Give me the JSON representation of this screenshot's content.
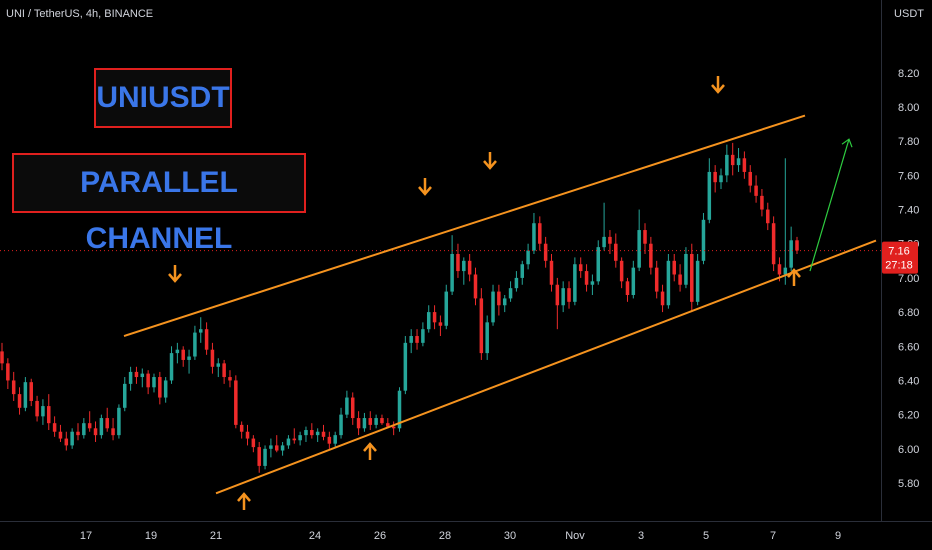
{
  "header": {
    "symbol_line": "UNI / TetherUS, 4h, BINANCE",
    "unit": "USDT"
  },
  "annotations": {
    "banner_ticker": "UNIUSDT",
    "banner_pattern": "PARALLEL CHANNEL"
  },
  "current_price": {
    "price_label": "7.16",
    "countdown_label": "27:18"
  },
  "colors": {
    "up": "#26a69a",
    "down": "#ef2b2b",
    "channel": "#f5931f",
    "arrow_projection": "#2ecc40",
    "banner_border": "#e0201e",
    "banner_text": "#3a76e8",
    "price_tag": "#e0201e"
  },
  "chart_data": {
    "type": "candlestick",
    "title": "UNI / TetherUS, 4h, BINANCE",
    "ylabel": "USDT",
    "ylim": [
      5.7,
      8.25
    ],
    "y_ticks": [
      "5.80",
      "6.00",
      "6.20",
      "6.40",
      "6.60",
      "6.80",
      "7.00",
      "7.20",
      "7.40",
      "7.60",
      "7.80",
      "8.00",
      "8.20"
    ],
    "x_ticks": [
      "17",
      "19",
      "21",
      "24",
      "26",
      "28",
      "30",
      "Nov",
      "3",
      "5",
      "7",
      "9"
    ],
    "x_ticks_dates": [
      "Oct 17",
      "Oct 19",
      "Oct 21",
      "Oct 24",
      "Oct 26",
      "Oct 28",
      "Oct 30",
      "Nov 1",
      "Nov 3",
      "Nov 5",
      "Nov 7",
      "Nov 9"
    ],
    "grid": false,
    "last_price": 7.16,
    "channel": {
      "upper": {
        "from": {
          "date": "Oct 17",
          "price": 6.66
        },
        "to": {
          "date": "Nov 8",
          "price": 7.95
        }
      },
      "lower": {
        "from": {
          "date": "Oct 21",
          "price": 5.74
        },
        "to": {
          "date": "Nov 8",
          "price": 7.16
        }
      }
    },
    "touch_points": {
      "upper_touches": [
        {
          "date": "Oct 19",
          "price": 6.78
        },
        {
          "date": "Oct 27",
          "price": 7.25
        },
        {
          "date": "Oct 29",
          "price": 7.38
        },
        {
          "date": "Nov 5",
          "price": 7.79
        }
      ],
      "lower_touches": [
        {
          "date": "Oct 21",
          "price": 5.85
        },
        {
          "date": "Oct 25",
          "price": 6.09
        },
        {
          "date": "Nov 7",
          "price": 6.96
        }
      ]
    },
    "projection_arrow": {
      "from": {
        "date": "Nov 7",
        "price": 7.04
      },
      "to": {
        "date": "Nov 8",
        "price": 7.8
      }
    },
    "candles": [
      {
        "o": 6.57,
        "h": 6.62,
        "l": 6.46,
        "c": 6.5
      },
      {
        "o": 6.5,
        "h": 6.53,
        "l": 6.35,
        "c": 6.4
      },
      {
        "o": 6.4,
        "h": 6.45,
        "l": 6.28,
        "c": 6.32
      },
      {
        "o": 6.32,
        "h": 6.36,
        "l": 6.2,
        "c": 6.24
      },
      {
        "o": 6.24,
        "h": 6.42,
        "l": 6.22,
        "c": 6.39
      },
      {
        "o": 6.39,
        "h": 6.41,
        "l": 6.25,
        "c": 6.28
      },
      {
        "o": 6.28,
        "h": 6.31,
        "l": 6.16,
        "c": 6.19
      },
      {
        "o": 6.19,
        "h": 6.29,
        "l": 6.14,
        "c": 6.25
      },
      {
        "o": 6.25,
        "h": 6.32,
        "l": 6.11,
        "c": 6.15
      },
      {
        "o": 6.15,
        "h": 6.19,
        "l": 6.07,
        "c": 6.1
      },
      {
        "o": 6.1,
        "h": 6.14,
        "l": 6.04,
        "c": 6.06
      },
      {
        "o": 6.06,
        "h": 6.1,
        "l": 5.99,
        "c": 6.02
      },
      {
        "o": 6.02,
        "h": 6.12,
        "l": 6.0,
        "c": 6.1
      },
      {
        "o": 6.1,
        "h": 6.15,
        "l": 6.05,
        "c": 6.08
      },
      {
        "o": 6.08,
        "h": 6.18,
        "l": 6.06,
        "c": 6.15
      },
      {
        "o": 6.15,
        "h": 6.22,
        "l": 6.1,
        "c": 6.12
      },
      {
        "o": 6.12,
        "h": 6.16,
        "l": 6.04,
        "c": 6.08
      },
      {
        "o": 6.08,
        "h": 6.2,
        "l": 6.06,
        "c": 6.18
      },
      {
        "o": 6.18,
        "h": 6.24,
        "l": 6.1,
        "c": 6.12
      },
      {
        "o": 6.12,
        "h": 6.18,
        "l": 6.05,
        "c": 6.08
      },
      {
        "o": 6.08,
        "h": 6.26,
        "l": 6.06,
        "c": 6.24
      },
      {
        "o": 6.24,
        "h": 6.42,
        "l": 6.22,
        "c": 6.38
      },
      {
        "o": 6.38,
        "h": 6.48,
        "l": 6.34,
        "c": 6.45
      },
      {
        "o": 6.45,
        "h": 6.48,
        "l": 6.38,
        "c": 6.42
      },
      {
        "o": 6.42,
        "h": 6.47,
        "l": 6.36,
        "c": 6.44
      },
      {
        "o": 6.44,
        "h": 6.46,
        "l": 6.32,
        "c": 6.36
      },
      {
        "o": 6.36,
        "h": 6.44,
        "l": 6.33,
        "c": 6.42
      },
      {
        "o": 6.42,
        "h": 6.45,
        "l": 6.26,
        "c": 6.3
      },
      {
        "o": 6.3,
        "h": 6.42,
        "l": 6.27,
        "c": 6.4
      },
      {
        "o": 6.4,
        "h": 6.6,
        "l": 6.38,
        "c": 6.56
      },
      {
        "o": 6.56,
        "h": 6.62,
        "l": 6.5,
        "c": 6.58
      },
      {
        "o": 6.58,
        "h": 6.6,
        "l": 6.48,
        "c": 6.52
      },
      {
        "o": 6.52,
        "h": 6.58,
        "l": 6.44,
        "c": 6.54
      },
      {
        "o": 6.54,
        "h": 6.72,
        "l": 6.52,
        "c": 6.68
      },
      {
        "o": 6.68,
        "h": 6.77,
        "l": 6.62,
        "c": 6.7
      },
      {
        "o": 6.7,
        "h": 6.74,
        "l": 6.55,
        "c": 6.58
      },
      {
        "o": 6.58,
        "h": 6.62,
        "l": 6.44,
        "c": 6.48
      },
      {
        "o": 6.48,
        "h": 6.53,
        "l": 6.42,
        "c": 6.5
      },
      {
        "o": 6.5,
        "h": 6.52,
        "l": 6.38,
        "c": 6.42
      },
      {
        "o": 6.42,
        "h": 6.46,
        "l": 6.36,
        "c": 6.4
      },
      {
        "o": 6.4,
        "h": 6.43,
        "l": 6.12,
        "c": 6.14
      },
      {
        "o": 6.14,
        "h": 6.16,
        "l": 6.06,
        "c": 6.1
      },
      {
        "o": 6.1,
        "h": 6.14,
        "l": 6.02,
        "c": 6.06
      },
      {
        "o": 6.06,
        "h": 6.08,
        "l": 5.98,
        "c": 6.01
      },
      {
        "o": 6.01,
        "h": 6.04,
        "l": 5.86,
        "c": 5.9
      },
      {
        "o": 5.9,
        "h": 6.02,
        "l": 5.88,
        "c": 6.0
      },
      {
        "o": 6.0,
        "h": 6.06,
        "l": 5.95,
        "c": 6.02
      },
      {
        "o": 6.02,
        "h": 6.08,
        "l": 5.98,
        "c": 5.99
      },
      {
        "o": 5.99,
        "h": 6.04,
        "l": 5.96,
        "c": 6.02
      },
      {
        "o": 6.02,
        "h": 6.08,
        "l": 6.0,
        "c": 6.06
      },
      {
        "o": 6.06,
        "h": 6.12,
        "l": 6.03,
        "c": 6.05
      },
      {
        "o": 6.05,
        "h": 6.1,
        "l": 6.02,
        "c": 6.08
      },
      {
        "o": 6.08,
        "h": 6.13,
        "l": 6.04,
        "c": 6.11
      },
      {
        "o": 6.11,
        "h": 6.15,
        "l": 6.06,
        "c": 6.08
      },
      {
        "o": 6.08,
        "h": 6.12,
        "l": 6.04,
        "c": 6.1
      },
      {
        "o": 6.1,
        "h": 6.14,
        "l": 6.05,
        "c": 6.07
      },
      {
        "o": 6.07,
        "h": 6.1,
        "l": 6.0,
        "c": 6.03
      },
      {
        "o": 6.03,
        "h": 6.1,
        "l": 6.01,
        "c": 6.08
      },
      {
        "o": 6.08,
        "h": 6.24,
        "l": 6.06,
        "c": 6.2
      },
      {
        "o": 6.2,
        "h": 6.34,
        "l": 6.18,
        "c": 6.3
      },
      {
        "o": 6.3,
        "h": 6.33,
        "l": 6.14,
        "c": 6.18
      },
      {
        "o": 6.18,
        "h": 6.22,
        "l": 6.08,
        "c": 6.12
      },
      {
        "o": 6.12,
        "h": 6.21,
        "l": 6.1,
        "c": 6.18
      },
      {
        "o": 6.18,
        "h": 6.22,
        "l": 6.11,
        "c": 6.14
      },
      {
        "o": 6.14,
        "h": 6.2,
        "l": 6.12,
        "c": 6.18
      },
      {
        "o": 6.18,
        "h": 6.2,
        "l": 6.14,
        "c": 6.15
      },
      {
        "o": 6.15,
        "h": 6.18,
        "l": 6.12,
        "c": 6.13
      },
      {
        "o": 6.13,
        "h": 6.16,
        "l": 6.08,
        "c": 6.12
      },
      {
        "o": 6.12,
        "h": 6.36,
        "l": 6.1,
        "c": 6.34
      },
      {
        "o": 6.34,
        "h": 6.66,
        "l": 6.32,
        "c": 6.62
      },
      {
        "o": 6.62,
        "h": 6.7,
        "l": 6.56,
        "c": 6.66
      },
      {
        "o": 6.66,
        "h": 6.7,
        "l": 6.58,
        "c": 6.62
      },
      {
        "o": 6.62,
        "h": 6.74,
        "l": 6.6,
        "c": 6.7
      },
      {
        "o": 6.7,
        "h": 6.84,
        "l": 6.68,
        "c": 6.8
      },
      {
        "o": 6.8,
        "h": 6.84,
        "l": 6.7,
        "c": 6.74
      },
      {
        "o": 6.74,
        "h": 6.78,
        "l": 6.66,
        "c": 6.72
      },
      {
        "o": 6.72,
        "h": 6.96,
        "l": 6.7,
        "c": 6.92
      },
      {
        "o": 6.92,
        "h": 7.25,
        "l": 6.9,
        "c": 7.14
      },
      {
        "o": 7.14,
        "h": 7.2,
        "l": 7.0,
        "c": 7.04
      },
      {
        "o": 7.04,
        "h": 7.12,
        "l": 6.96,
        "c": 7.1
      },
      {
        "o": 7.1,
        "h": 7.14,
        "l": 6.98,
        "c": 7.02
      },
      {
        "o": 7.02,
        "h": 7.06,
        "l": 6.84,
        "c": 6.88
      },
      {
        "o": 6.88,
        "h": 6.94,
        "l": 6.52,
        "c": 6.56
      },
      {
        "o": 6.56,
        "h": 6.78,
        "l": 6.52,
        "c": 6.74
      },
      {
        "o": 6.74,
        "h": 6.96,
        "l": 6.72,
        "c": 6.92
      },
      {
        "o": 6.92,
        "h": 6.96,
        "l": 6.78,
        "c": 6.84
      },
      {
        "o": 6.84,
        "h": 6.9,
        "l": 6.8,
        "c": 6.88
      },
      {
        "o": 6.88,
        "h": 6.98,
        "l": 6.86,
        "c": 6.94
      },
      {
        "o": 6.94,
        "h": 7.04,
        "l": 6.92,
        "c": 7.0
      },
      {
        "o": 7.0,
        "h": 7.1,
        "l": 6.96,
        "c": 7.08
      },
      {
        "o": 7.08,
        "h": 7.2,
        "l": 7.05,
        "c": 7.16
      },
      {
        "o": 7.16,
        "h": 7.38,
        "l": 7.14,
        "c": 7.32
      },
      {
        "o": 7.32,
        "h": 7.36,
        "l": 7.16,
        "c": 7.2
      },
      {
        "o": 7.2,
        "h": 7.24,
        "l": 7.06,
        "c": 7.1
      },
      {
        "o": 7.1,
        "h": 7.14,
        "l": 6.92,
        "c": 6.96
      },
      {
        "o": 6.96,
        "h": 7.0,
        "l": 6.7,
        "c": 6.84
      },
      {
        "o": 6.84,
        "h": 6.98,
        "l": 6.8,
        "c": 6.94
      },
      {
        "o": 6.94,
        "h": 6.98,
        "l": 6.82,
        "c": 6.86
      },
      {
        "o": 6.86,
        "h": 7.12,
        "l": 6.84,
        "c": 7.08
      },
      {
        "o": 7.08,
        "h": 7.12,
        "l": 7.0,
        "c": 7.04
      },
      {
        "o": 7.04,
        "h": 7.08,
        "l": 6.92,
        "c": 6.96
      },
      {
        "o": 6.96,
        "h": 7.02,
        "l": 6.9,
        "c": 6.98
      },
      {
        "o": 6.98,
        "h": 7.22,
        "l": 6.96,
        "c": 7.18
      },
      {
        "o": 7.18,
        "h": 7.44,
        "l": 7.16,
        "c": 7.24
      },
      {
        "o": 7.24,
        "h": 7.28,
        "l": 7.14,
        "c": 7.2
      },
      {
        "o": 7.2,
        "h": 7.26,
        "l": 7.06,
        "c": 7.1
      },
      {
        "o": 7.1,
        "h": 7.12,
        "l": 6.94,
        "c": 6.98
      },
      {
        "o": 6.98,
        "h": 7.0,
        "l": 6.86,
        "c": 6.9
      },
      {
        "o": 6.9,
        "h": 7.1,
        "l": 6.88,
        "c": 7.06
      },
      {
        "o": 7.06,
        "h": 7.4,
        "l": 7.04,
        "c": 7.28
      },
      {
        "o": 7.28,
        "h": 7.32,
        "l": 7.14,
        "c": 7.2
      },
      {
        "o": 7.2,
        "h": 7.24,
        "l": 7.02,
        "c": 7.06
      },
      {
        "o": 7.06,
        "h": 7.1,
        "l": 6.88,
        "c": 6.92
      },
      {
        "o": 6.92,
        "h": 6.96,
        "l": 6.8,
        "c": 6.84
      },
      {
        "o": 6.84,
        "h": 7.14,
        "l": 6.82,
        "c": 7.1
      },
      {
        "o": 7.1,
        "h": 7.14,
        "l": 6.98,
        "c": 7.02
      },
      {
        "o": 7.02,
        "h": 7.08,
        "l": 6.92,
        "c": 6.96
      },
      {
        "o": 6.96,
        "h": 7.18,
        "l": 6.94,
        "c": 7.14
      },
      {
        "o": 7.14,
        "h": 7.2,
        "l": 6.8,
        "c": 6.86
      },
      {
        "o": 6.86,
        "h": 7.14,
        "l": 6.84,
        "c": 7.1
      },
      {
        "o": 7.1,
        "h": 7.38,
        "l": 7.08,
        "c": 7.34
      },
      {
        "o": 7.34,
        "h": 7.7,
        "l": 7.32,
        "c": 7.62
      },
      {
        "o": 7.62,
        "h": 7.66,
        "l": 7.5,
        "c": 7.56
      },
      {
        "o": 7.56,
        "h": 7.64,
        "l": 7.52,
        "c": 7.6
      },
      {
        "o": 7.6,
        "h": 7.78,
        "l": 7.56,
        "c": 7.72
      },
      {
        "o": 7.72,
        "h": 7.79,
        "l": 7.6,
        "c": 7.66
      },
      {
        "o": 7.66,
        "h": 7.76,
        "l": 7.62,
        "c": 7.7
      },
      {
        "o": 7.7,
        "h": 7.74,
        "l": 7.58,
        "c": 7.62
      },
      {
        "o": 7.62,
        "h": 7.66,
        "l": 7.5,
        "c": 7.54
      },
      {
        "o": 7.54,
        "h": 7.6,
        "l": 7.44,
        "c": 7.48
      },
      {
        "o": 7.48,
        "h": 7.52,
        "l": 7.36,
        "c": 7.4
      },
      {
        "o": 7.4,
        "h": 7.44,
        "l": 7.28,
        "c": 7.32
      },
      {
        "o": 7.32,
        "h": 7.36,
        "l": 7.04,
        "c": 7.08
      },
      {
        "o": 7.08,
        "h": 7.12,
        "l": 6.98,
        "c": 7.02
      },
      {
        "o": 7.02,
        "h": 7.7,
        "l": 6.96,
        "c": 7.06
      },
      {
        "o": 7.06,
        "h": 7.3,
        "l": 7.04,
        "c": 7.22
      },
      {
        "o": 7.22,
        "h": 7.24,
        "l": 7.14,
        "c": 7.16
      }
    ]
  }
}
